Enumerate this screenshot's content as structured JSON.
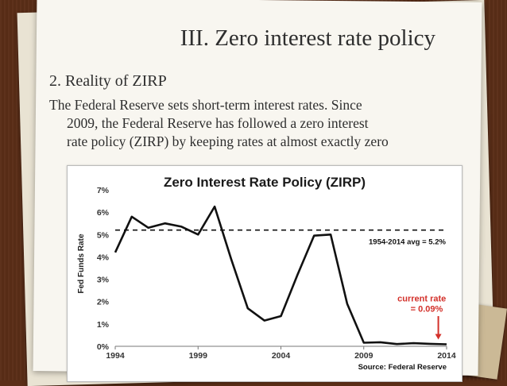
{
  "slide": {
    "title": "III. Zero interest rate policy",
    "subtitle": "2. Reality of ZIRP",
    "body_lines": [
      "The Federal Reserve sets short-term interest rates. Since",
      "2009, the Federal Reserve has followed a zero interest",
      "rate policy (ZIRP) by keeping rates at almost exactly zero"
    ]
  },
  "chart_data": {
    "type": "line",
    "title": "Zero Interest Rate Policy (ZIRP)",
    "ylabel": "Fed Funds Rate",
    "xlabel": "",
    "x_ticks": [
      "1994",
      "1999",
      "2004",
      "2009",
      "2014"
    ],
    "y_ticks": [
      "0%",
      "1%",
      "2%",
      "3%",
      "4%",
      "5%",
      "6%",
      "7%"
    ],
    "xlim": [
      1994,
      2014
    ],
    "ylim": [
      0,
      7
    ],
    "series": [
      {
        "x": [
          1994,
          1995,
          1996,
          1997,
          1998,
          1999,
          2000,
          2001,
          2002,
          2003,
          2004,
          2005,
          2006,
          2007,
          2008,
          2009,
          2010,
          2011,
          2012,
          2013,
          2014
        ],
        "values": [
          4.2,
          5.8,
          5.3,
          5.5,
          5.35,
          5.0,
          6.25,
          3.9,
          1.7,
          1.15,
          1.35,
          3.2,
          4.95,
          5.0,
          1.9,
          0.16,
          0.18,
          0.1,
          0.14,
          0.11,
          0.09
        ]
      }
    ],
    "reference_line": {
      "value": 5.2,
      "label": "1954-2014 avg = 5.2%"
    },
    "annotation": {
      "lines": [
        "current rate",
        "= 0.09%"
      ],
      "color": "#d3302a"
    },
    "source": "Source: Federal Reserve"
  }
}
